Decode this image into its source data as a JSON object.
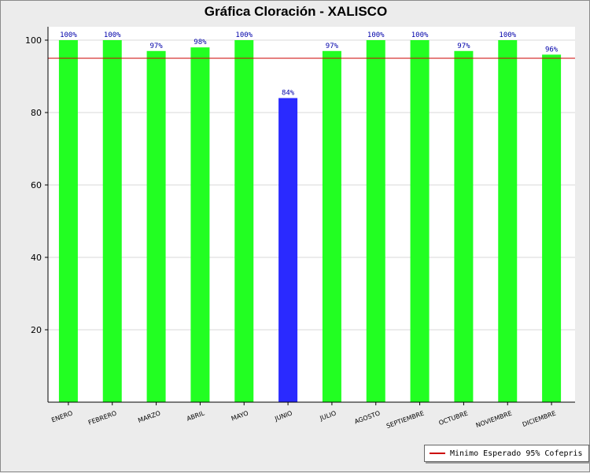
{
  "chart_data": {
    "type": "bar",
    "title": "Gráfica Cloración - XALISCO",
    "categories": [
      "ENERO",
      "FEBRERO",
      "MARZO",
      "ABRIL",
      "MAYO",
      "JUNIO",
      "JULIO",
      "AGOSTO",
      "SEPTIEMBRE",
      "OCTUBRE",
      "NOVIEMBRE",
      "DICIEMBRE"
    ],
    "values": [
      100,
      100,
      97,
      98,
      100,
      84,
      97,
      100,
      100,
      97,
      100,
      96
    ],
    "data_labels": [
      "100%",
      "100%",
      "97%",
      "98%",
      "100%",
      "84%",
      "97%",
      "100%",
      "100%",
      "97%",
      "100%",
      "96%"
    ],
    "bar_colors": [
      "#22ff22",
      "#22ff22",
      "#22ff22",
      "#22ff22",
      "#22ff22",
      "#2a2aff",
      "#22ff22",
      "#22ff22",
      "#22ff22",
      "#22ff22",
      "#22ff22",
      "#22ff22"
    ],
    "ylim": [
      0,
      100
    ],
    "yticks": [
      20,
      40,
      60,
      80,
      100
    ],
    "reference_line": {
      "value": 95,
      "label": "Minimo Esperado 95% Cofepris",
      "color": "#cc0000"
    },
    "grid": "horizontal",
    "legend_position": "bottom-right"
  }
}
